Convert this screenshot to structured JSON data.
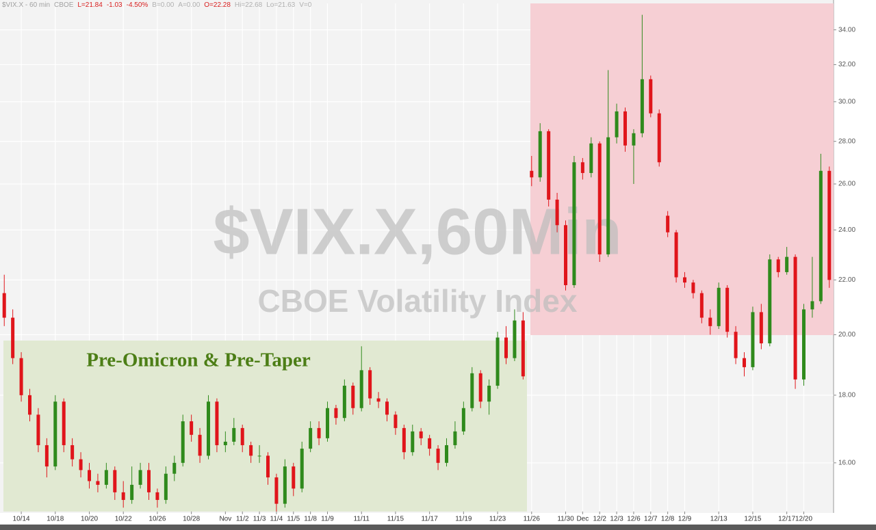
{
  "chart_data": {
    "type": "candlestick",
    "header": [
      {
        "text": "$VIX.X - 60 min",
        "color": "#a0a0a0"
      },
      {
        "text": "CBOE",
        "color": "#a0a0a0"
      },
      {
        "text": "L=21.84",
        "color": "#d92020"
      },
      {
        "text": "-1.03",
        "color": "#d92020"
      },
      {
        "text": "-4.50%",
        "color": "#d92020"
      },
      {
        "text": "B=0.00",
        "color": "#b0b0b0"
      },
      {
        "text": "A=0.00",
        "color": "#b0b0b0"
      },
      {
        "text": "O=22.28",
        "color": "#d92020"
      },
      {
        "text": "Hi=22.68",
        "color": "#b0b0b0"
      },
      {
        "text": "Lo=21.63",
        "color": "#b0b0b0"
      },
      {
        "text": "V=0",
        "color": "#b0b0b0"
      }
    ],
    "watermark": [
      "$VIX.X,60Min",
      "CBOE Volatility Index"
    ],
    "annotation": "Pre-Omicron & Pre-Taper",
    "categories": [
      null,
      null,
      "10/14",
      null,
      null,
      null,
      "10/18",
      null,
      null,
      null,
      "10/20",
      null,
      null,
      null,
      "10/22",
      null,
      null,
      null,
      "10/26",
      null,
      null,
      null,
      "10/28",
      null,
      null,
      null,
      "Nov",
      null,
      "11/2",
      null,
      "11/3",
      null,
      "11/4",
      null,
      "11/5",
      null,
      "11/8",
      null,
      "11/9",
      null,
      null,
      null,
      "11/11",
      null,
      null,
      null,
      "11/15",
      null,
      null,
      null,
      "11/17",
      null,
      null,
      null,
      "11/19",
      null,
      null,
      null,
      "11/23",
      null,
      null,
      null,
      "11/26",
      null,
      null,
      null,
      "11/30",
      null,
      "Dec",
      null,
      "12/2",
      null,
      "12/3",
      null,
      "12/6",
      null,
      "12/7",
      null,
      "12/8",
      null,
      "12/9",
      null,
      null,
      null,
      "12/13",
      null,
      null,
      null,
      "12/15",
      null,
      null,
      null,
      "12/17",
      null,
      "12/20",
      null,
      null,
      null
    ],
    "open": [
      21.5,
      20.6,
      19.2,
      18.0,
      17.4,
      16.5,
      15.9,
      17.8,
      16.5,
      16.1,
      15.8,
      15.5,
      15.4,
      15.8,
      15.2,
      15.0,
      15.4,
      15.8,
      15.2,
      15.0,
      15.7,
      16.0,
      17.2,
      16.8,
      16.2,
      17.8,
      16.5,
      16.6,
      17.0,
      16.5,
      16.2,
      16.2,
      15.6,
      14.9,
      15.9,
      15.3,
      16.4,
      17.0,
      16.7,
      17.6,
      17.3,
      18.3,
      17.6,
      18.8,
      17.9,
      17.8,
      17.4,
      17.0,
      16.3,
      16.9,
      16.7,
      16.4,
      16.0,
      16.5,
      16.9,
      17.6,
      18.7,
      17.8,
      18.3,
      19.9,
      19.2,
      20.5,
      26.6,
      26.3,
      28.5,
      25.3,
      24.2,
      21.8,
      27.0,
      26.5,
      27.9,
      23.0,
      28.2,
      29.5,
      27.8,
      28.4,
      31.2,
      29.4,
      24.6,
      23.9,
      22.1,
      21.9,
      21.5,
      20.6,
      20.3,
      21.7,
      20.1,
      19.2,
      18.9,
      20.8,
      19.7,
      22.8,
      22.3,
      22.9,
      18.5,
      20.9,
      21.2,
      26.6
    ],
    "high": [
      22.2,
      20.9,
      19.4,
      18.2,
      17.6,
      16.7,
      18.0,
      17.9,
      16.7,
      16.3,
      16.0,
      15.7,
      16.0,
      15.9,
      15.5,
      15.9,
      16.0,
      16.0,
      15.3,
      15.9,
      16.2,
      17.4,
      17.4,
      17.0,
      18.0,
      17.9,
      16.9,
      17.3,
      17.1,
      16.6,
      16.5,
      16.3,
      15.7,
      16.1,
      16.0,
      16.6,
      17.2,
      17.2,
      17.8,
      17.7,
      18.5,
      18.4,
      19.6,
      18.9,
      18.1,
      17.9,
      17.5,
      17.1,
      17.1,
      17.0,
      16.8,
      16.5,
      16.7,
      17.2,
      17.8,
      18.9,
      18.8,
      18.5,
      20.1,
      20.3,
      20.9,
      20.8,
      27.3,
      28.9,
      28.6,
      25.6,
      24.4,
      27.3,
      27.2,
      28.2,
      28.0,
      31.7,
      29.9,
      29.7,
      28.6,
      34.9,
      31.4,
      29.6,
      24.8,
      24.0,
      22.3,
      22.0,
      21.6,
      20.9,
      21.9,
      21.8,
      20.3,
      19.4,
      21.0,
      21.1,
      23.0,
      22.9,
      23.3,
      23.0,
      21.1,
      22.9,
      27.4,
      26.8
    ],
    "low": [
      20.3,
      19.0,
      17.8,
      17.2,
      16.3,
      15.6,
      15.8,
      16.3,
      15.9,
      15.6,
      15.3,
      15.2,
      15.3,
      15.0,
      14.8,
      14.9,
      15.3,
      15.0,
      14.8,
      14.9,
      15.5,
      15.9,
      16.6,
      16.0,
      16.1,
      16.3,
      16.3,
      16.5,
      16.3,
      16.0,
      16.0,
      15.4,
      14.7,
      14.8,
      15.1,
      15.2,
      16.3,
      16.5,
      16.6,
      17.1,
      17.2,
      17.4,
      17.5,
      17.7,
      17.6,
      17.2,
      16.8,
      16.1,
      16.2,
      16.5,
      16.2,
      15.8,
      15.9,
      16.4,
      16.8,
      17.5,
      17.6,
      17.4,
      18.2,
      19.0,
      19.1,
      18.5,
      25.9,
      26.1,
      25.0,
      23.9,
      21.6,
      21.7,
      26.2,
      26.3,
      22.7,
      22.9,
      27.9,
      27.5,
      26.0,
      28.2,
      29.2,
      26.8,
      23.7,
      21.9,
      21.7,
      21.3,
      20.4,
      20.0,
      20.2,
      19.9,
      19.0,
      18.6,
      18.8,
      19.5,
      19.6,
      22.1,
      22.2,
      18.2,
      18.3,
      20.6,
      21.1,
      21.7
    ],
    "close": [
      20.6,
      19.2,
      18.0,
      17.4,
      16.5,
      15.9,
      17.8,
      16.5,
      16.1,
      15.8,
      15.5,
      15.4,
      15.8,
      15.2,
      15.0,
      15.4,
      15.8,
      15.2,
      15.0,
      15.7,
      16.0,
      17.2,
      16.8,
      16.2,
      17.8,
      16.5,
      16.6,
      17.0,
      16.5,
      16.2,
      16.2,
      15.6,
      14.9,
      15.9,
      15.3,
      16.4,
      17.0,
      16.7,
      17.6,
      17.3,
      18.3,
      17.6,
      18.8,
      17.9,
      17.8,
      17.4,
      17.0,
      16.3,
      16.9,
      16.7,
      16.4,
      16.0,
      16.5,
      16.9,
      17.6,
      18.7,
      17.8,
      18.3,
      19.9,
      19.2,
      20.5,
      18.6,
      26.3,
      28.5,
      25.3,
      24.2,
      21.8,
      27.0,
      26.5,
      27.9,
      23.0,
      28.2,
      29.5,
      27.8,
      28.4,
      31.2,
      29.4,
      27.0,
      23.9,
      22.1,
      21.9,
      21.5,
      20.6,
      20.3,
      21.7,
      20.1,
      19.2,
      18.9,
      20.8,
      19.7,
      22.8,
      22.3,
      22.9,
      18.5,
      20.9,
      21.2,
      26.6,
      22.0
    ],
    "up_color": "#2f8a1c",
    "down_color": "#e0151b",
    "log_scale": true,
    "grid": true,
    "ylim": [
      14.7,
      35.6
    ],
    "yticks": [
      {
        "value": 16,
        "label": "16.00"
      },
      {
        "value": 18,
        "label": "18.00"
      },
      {
        "value": 20,
        "label": "20.00"
      },
      {
        "value": 22,
        "label": "22.00"
      },
      {
        "value": 24,
        "label": "24.00"
      },
      {
        "value": 26,
        "label": "26.00"
      },
      {
        "value": 28,
        "label": "28.00"
      },
      {
        "value": 30,
        "label": "30.00"
      },
      {
        "value": 32,
        "label": "32.00"
      },
      {
        "value": 34,
        "label": "34.00"
      }
    ]
  }
}
